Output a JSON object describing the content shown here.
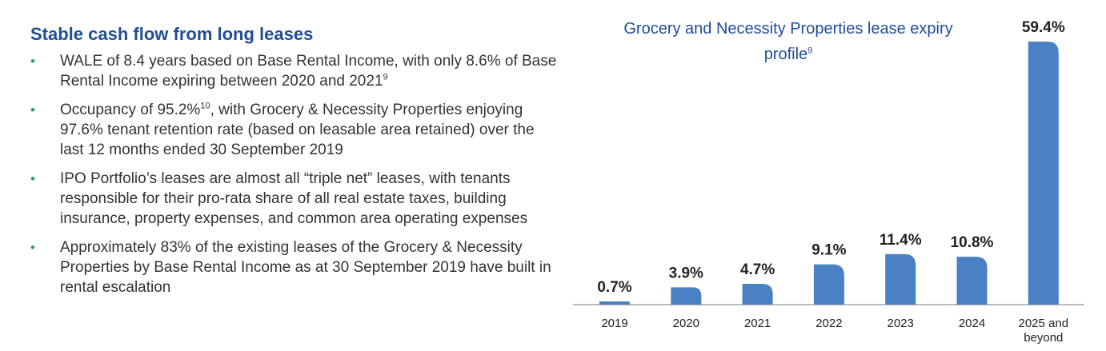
{
  "left": {
    "heading": "Stable cash flow from long leases",
    "bullets": [
      {
        "text": "WALE of 8.4 years based on Base Rental Income, with only 8.6% of Base Rental Income expiring between 2020 and 2021",
        "sup": "9"
      },
      {
        "text": "Occupancy of 95.2%",
        "sup": "10",
        "after": ", with Grocery & Necessity Properties enjoying 97.6% tenant retention rate (based on leasable area retained) over the last 12 months ended 30 September 2019"
      },
      {
        "text": "IPO Portfolio’s leases are almost all “triple net” leases, with tenants responsible for their pro-rata share of all real estate taxes, building insurance, property expenses, and common area operating expenses"
      },
      {
        "text": "Approximately 83% of the existing leases of the Grocery & Necessity Properties by Base Rental Income as at 30 September 2019 have built in rental escalation"
      }
    ]
  },
  "chart_data": {
    "type": "bar",
    "title": "Grocery and Necessity Properties lease expiry profile",
    "title_sup": "9",
    "categories": [
      "2019",
      "2020",
      "2021",
      "2022",
      "2023",
      "2024",
      "2025 and beyond"
    ],
    "values": [
      0.7,
      3.9,
      4.7,
      9.1,
      11.4,
      10.8,
      59.4
    ],
    "value_labels": [
      "0.7%",
      "3.9%",
      "4.7%",
      "9.1%",
      "11.4%",
      "10.8%",
      "59.4%"
    ],
    "ylim": [
      0,
      59.4
    ],
    "grid": false,
    "bar_color": "#4a80c4",
    "title_color": "#1f4e96"
  }
}
